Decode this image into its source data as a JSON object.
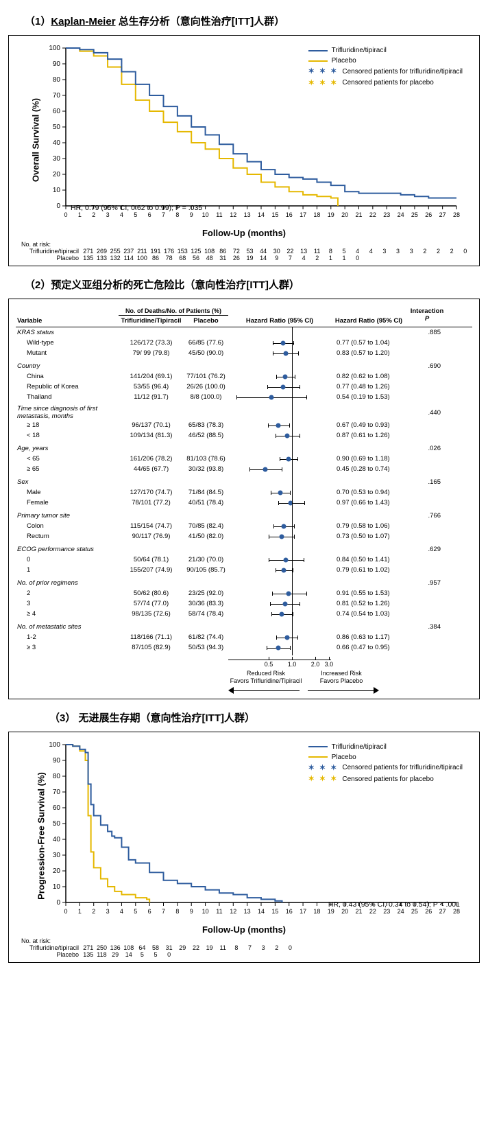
{
  "colors": {
    "treatment": "#2e5c9e",
    "placebo": "#e5b800",
    "grid": "#000000",
    "dot": "#2e5c9e",
    "ci": "#000000"
  },
  "panel1": {
    "title_prefix": "（1）",
    "title_underline": "Kaplan-Meier",
    "title_rest": " 总生存分析（意向性治疗[ITT]人群）",
    "ylabel": "Overall Survival (%)",
    "xlabel": "Follow-Up (months)",
    "xmax": 28,
    "ymax": 100,
    "xtick_step": 1,
    "ytick_step": 10,
    "legend": {
      "treatment": "Trifluridine/tipiracil",
      "placebo": "Placebo",
      "cens_t": "Censored patients for trifluridine/tipiracil",
      "cens_p": "Censored patients for placebo"
    },
    "hr_text": "HR, 0.79 (95% CI, 0.62 to 0.99); P = .035",
    "hr_text_italic_p": true,
    "series": {
      "treatment": [
        [
          0,
          100
        ],
        [
          0.5,
          100
        ],
        [
          1,
          99
        ],
        [
          2,
          97
        ],
        [
          3,
          93
        ],
        [
          4,
          85
        ],
        [
          5,
          77
        ],
        [
          6,
          70
        ],
        [
          7,
          63
        ],
        [
          8,
          57
        ],
        [
          9,
          50
        ],
        [
          10,
          45
        ],
        [
          11,
          39
        ],
        [
          12,
          33
        ],
        [
          13,
          28
        ],
        [
          14,
          23
        ],
        [
          15,
          20
        ],
        [
          16,
          18
        ],
        [
          17,
          17
        ],
        [
          18,
          15
        ],
        [
          19,
          13
        ],
        [
          20,
          9
        ],
        [
          21,
          8
        ],
        [
          22,
          8
        ],
        [
          23,
          8
        ],
        [
          24,
          7
        ],
        [
          25,
          6
        ],
        [
          26,
          5
        ],
        [
          27,
          5
        ],
        [
          28,
          5
        ]
      ],
      "placebo": [
        [
          0,
          100
        ],
        [
          0.5,
          100
        ],
        [
          1,
          98
        ],
        [
          2,
          95
        ],
        [
          3,
          88
        ],
        [
          4,
          77
        ],
        [
          5,
          67
        ],
        [
          6,
          60
        ],
        [
          7,
          53
        ],
        [
          8,
          47
        ],
        [
          9,
          40
        ],
        [
          10,
          36
        ],
        [
          11,
          30
        ],
        [
          12,
          24
        ],
        [
          13,
          20
        ],
        [
          14,
          15
        ],
        [
          15,
          12
        ],
        [
          16,
          9
        ],
        [
          17,
          7
        ],
        [
          18,
          6
        ],
        [
          19,
          5
        ],
        [
          19.5,
          0
        ]
      ]
    },
    "risk_title": "No. at risk:",
    "risk": {
      "labels": [
        "Trifluridine/tipiracil",
        "Placebo"
      ],
      "treatment": [
        271,
        269,
        255,
        237,
        211,
        191,
        176,
        153,
        125,
        108,
        86,
        72,
        53,
        44,
        30,
        22,
        13,
        11,
        8,
        5,
        4,
        4,
        3,
        3,
        3,
        2,
        2,
        2,
        0
      ],
      "placebo": [
        135,
        133,
        132,
        114,
        100,
        86,
        78,
        68,
        56,
        48,
        31,
        26,
        19,
        14,
        9,
        7,
        4,
        2,
        1,
        1,
        0
      ]
    }
  },
  "panel2": {
    "title": "（2）预定义亚组分析的死亡危险比（意向性治疗[ITT]人群）",
    "headers": {
      "variable": "Variable",
      "deaths_sup": "No. of Deaths/No. of Patients (%)",
      "d1": "Trifluridine/Tipiracil",
      "d2": "Placebo",
      "plot": "Hazard Ratio (95% CI)",
      "hr": "Hazard Ratio (95% CI)",
      "p_sup": "Interaction",
      "p": "P"
    },
    "axis": {
      "ticks": [
        0.5,
        1.0,
        2.0,
        3.0
      ],
      "min": 0.15,
      "max": 3.2,
      "ref": 1.0
    },
    "bottom": {
      "left1": "Reduced Risk",
      "left2": "Favors Trifluridine/Tipiracil",
      "right1": "Increased Risk",
      "right2": "Favors  Placebo"
    },
    "groups": [
      {
        "name": "KRAS status",
        "p": ".885",
        "rows": [
          {
            "label": "Wild-type",
            "d1": "126/172 (73.3)",
            "d2": "66/85 (77.6)",
            "hr": 0.77,
            "lo": 0.57,
            "hi": 1.04,
            "txt": "0.77 (0.57 to 1.04)"
          },
          {
            "label": "Mutant",
            "d1": "79/ 99 (79.8)",
            "d2": "45/50 (90.0)",
            "hr": 0.83,
            "lo": 0.57,
            "hi": 1.2,
            "txt": "0.83 (0.57 to 1.20)"
          }
        ]
      },
      {
        "name": "Country",
        "p": ".690",
        "rows": [
          {
            "label": "China",
            "d1": "141/204 (69.1)",
            "d2": "77/101 (76.2)",
            "hr": 0.82,
            "lo": 0.62,
            "hi": 1.08,
            "txt": "0.82 (0.62 to 1.08)"
          },
          {
            "label": "Republic of Korea",
            "d1": "53/55 (96.4)",
            "d2": "26/26 (100.0)",
            "hr": 0.77,
            "lo": 0.48,
            "hi": 1.26,
            "txt": "0.77 (0.48 to 1.26)"
          },
          {
            "label": "Thailand",
            "d1": "11/12 (91.7)",
            "d2": "8/8 (100.0)",
            "hr": 0.54,
            "lo": 0.19,
            "hi": 1.53,
            "txt": "0.54 (0.19 to 1.53)"
          }
        ]
      },
      {
        "name": "Time since diagnosis of first metastasis, months",
        "p": ".440",
        "rows": [
          {
            "label": "≥ 18",
            "d1": "96/137 (70.1)",
            "d2": "65/83 (78.3)",
            "hr": 0.67,
            "lo": 0.49,
            "hi": 0.93,
            "txt": "0.67 (0.49 to 0.93)"
          },
          {
            "label": "< 18",
            "d1": "109/134 (81.3)",
            "d2": "46/52 (88.5)",
            "hr": 0.87,
            "lo": 0.61,
            "hi": 1.26,
            "txt": "0.87 (0.61 to 1.26)"
          }
        ]
      },
      {
        "name": "Age, years",
        "p": ".026",
        "rows": [
          {
            "label": "< 65",
            "d1": "161/206 (78.2)",
            "d2": "81/103 (78.6)",
            "hr": 0.9,
            "lo": 0.69,
            "hi": 1.18,
            "txt": "0.90 (0.69 to 1.18)"
          },
          {
            "label": "≥ 65",
            "d1": "44/65 (67.7)",
            "d2": "30/32 (93.8)",
            "hr": 0.45,
            "lo": 0.28,
            "hi": 0.74,
            "txt": "0.45 (0.28 to 0.74)"
          }
        ]
      },
      {
        "name": "Sex",
        "p": ".165",
        "rows": [
          {
            "label": "Male",
            "d1": "127/170 (74.7)",
            "d2": "71/84 (84.5)",
            "hr": 0.7,
            "lo": 0.53,
            "hi": 0.94,
            "txt": "0.70 (0.53 to 0.94)"
          },
          {
            "label": "Female",
            "d1": "78/101 (77.2)",
            "d2": "40/51 (78.4)",
            "hr": 0.97,
            "lo": 0.66,
            "hi": 1.43,
            "txt": "0.97 (0.66 to 1.43)"
          }
        ]
      },
      {
        "name": "Primary tumor site",
        "p": ".766",
        "rows": [
          {
            "label": "Colon",
            "d1": "115/154 (74.7)",
            "d2": "70/85 (82.4)",
            "hr": 0.79,
            "lo": 0.58,
            "hi": 1.06,
            "txt": "0.79 (0.58 to 1.06)"
          },
          {
            "label": "Rectum",
            "d1": "90/117 (76.9)",
            "d2": "41/50 (82.0)",
            "hr": 0.73,
            "lo": 0.5,
            "hi": 1.07,
            "txt": "0.73 (0.50 to 1.07)"
          }
        ]
      },
      {
        "name": "ECOG performance status",
        "p": ".629",
        "rows": [
          {
            "label": "0",
            "d1": "50/64 (78.1)",
            "d2": "21/30 (70.0)",
            "hr": 0.84,
            "lo": 0.5,
            "hi": 1.41,
            "txt": "0.84 (0.50 to 1.41)"
          },
          {
            "label": "1",
            "d1": "155/207 (74.9)",
            "d2": "90/105 (85.7)",
            "hr": 0.79,
            "lo": 0.61,
            "hi": 1.02,
            "txt": "0.79 (0.61 to 1.02)"
          }
        ]
      },
      {
        "name": "No. of prior regimens",
        "p": ".957",
        "rows": [
          {
            "label": "2",
            "d1": "50/62 (80.6)",
            "d2": "23/25 (92.0)",
            "hr": 0.91,
            "lo": 0.55,
            "hi": 1.53,
            "txt": "0.91 (0.55 to 1.53)"
          },
          {
            "label": "3",
            "d1": "57/74 (77.0)",
            "d2": "30/36 (83.3)",
            "hr": 0.81,
            "lo": 0.52,
            "hi": 1.26,
            "txt": "0.81 (0.52 to 1.26)"
          },
          {
            "label": "≥ 4",
            "d1": "98/135 (72.6)",
            "d2": "58/74 (78.4)",
            "hr": 0.74,
            "lo": 0.54,
            "hi": 1.03,
            "txt": "0.74 (0.54 to 1.03)"
          }
        ]
      },
      {
        "name": "No. of metastatic sites",
        "p": ".384",
        "rows": [
          {
            "label": "1-2",
            "d1": "118/166 (71.1)",
            "d2": "61/82 (74.4)",
            "hr": 0.86,
            "lo": 0.63,
            "hi": 1.17,
            "txt": "0.86 (0.63 to 1.17)"
          },
          {
            "label": "≥ 3",
            "d1": "87/105 (82.9)",
            "d2": "50/53 (94.3)",
            "hr": 0.66,
            "lo": 0.47,
            "hi": 0.95,
            "txt": "0.66 (0.47 to 0.95)"
          }
        ]
      }
    ]
  },
  "panel3": {
    "title": "（3） 无进展生存期（意向性治疗[ITT]人群）",
    "ylabel": "Progression-Free Survival (%)",
    "xlabel": "Follow-Up (months)",
    "xmax": 28,
    "ymax": 100,
    "legend": {
      "treatment": "Trifluridine/tipiracil",
      "placebo": "Placebo",
      "cens_t": "Censored patients for trifluridine/tipiracil",
      "cens_p": "Censored patients for placebo"
    },
    "hr_text": "HR, 0.43 (95% CI, 0.34 to 0.54); P < .001",
    "series": {
      "treatment": [
        [
          0,
          100
        ],
        [
          0.5,
          99
        ],
        [
          1,
          97
        ],
        [
          1.4,
          95
        ],
        [
          1.6,
          75
        ],
        [
          1.8,
          62
        ],
        [
          2,
          55
        ],
        [
          2.5,
          49
        ],
        [
          3,
          45
        ],
        [
          3.3,
          42
        ],
        [
          3.5,
          41
        ],
        [
          4,
          35
        ],
        [
          4.5,
          27
        ],
        [
          5,
          25
        ],
        [
          6,
          19
        ],
        [
          7,
          14
        ],
        [
          8,
          12
        ],
        [
          9,
          10
        ],
        [
          10,
          8
        ],
        [
          11,
          6
        ],
        [
          12,
          5
        ],
        [
          13,
          3
        ],
        [
          14,
          2
        ],
        [
          15,
          1
        ],
        [
          15.5,
          0
        ]
      ],
      "placebo": [
        [
          0,
          100
        ],
        [
          0.5,
          99
        ],
        [
          1,
          96
        ],
        [
          1.4,
          90
        ],
        [
          1.6,
          55
        ],
        [
          1.8,
          32
        ],
        [
          2,
          22
        ],
        [
          2.5,
          15
        ],
        [
          3,
          10
        ],
        [
          3.5,
          7
        ],
        [
          4,
          5
        ],
        [
          5,
          3
        ],
        [
          5.8,
          2
        ],
        [
          6,
          0
        ]
      ]
    },
    "risk_title": "No. at risk:",
    "risk": {
      "labels": [
        "Trifluridine/tipiracil",
        "Placebo"
      ],
      "treatment": [
        271,
        250,
        136,
        108,
        64,
        58,
        31,
        29,
        22,
        19,
        11,
        8,
        7,
        3,
        2,
        0
      ],
      "placebo": [
        135,
        118,
        29,
        14,
        5,
        5,
        0
      ]
    }
  }
}
